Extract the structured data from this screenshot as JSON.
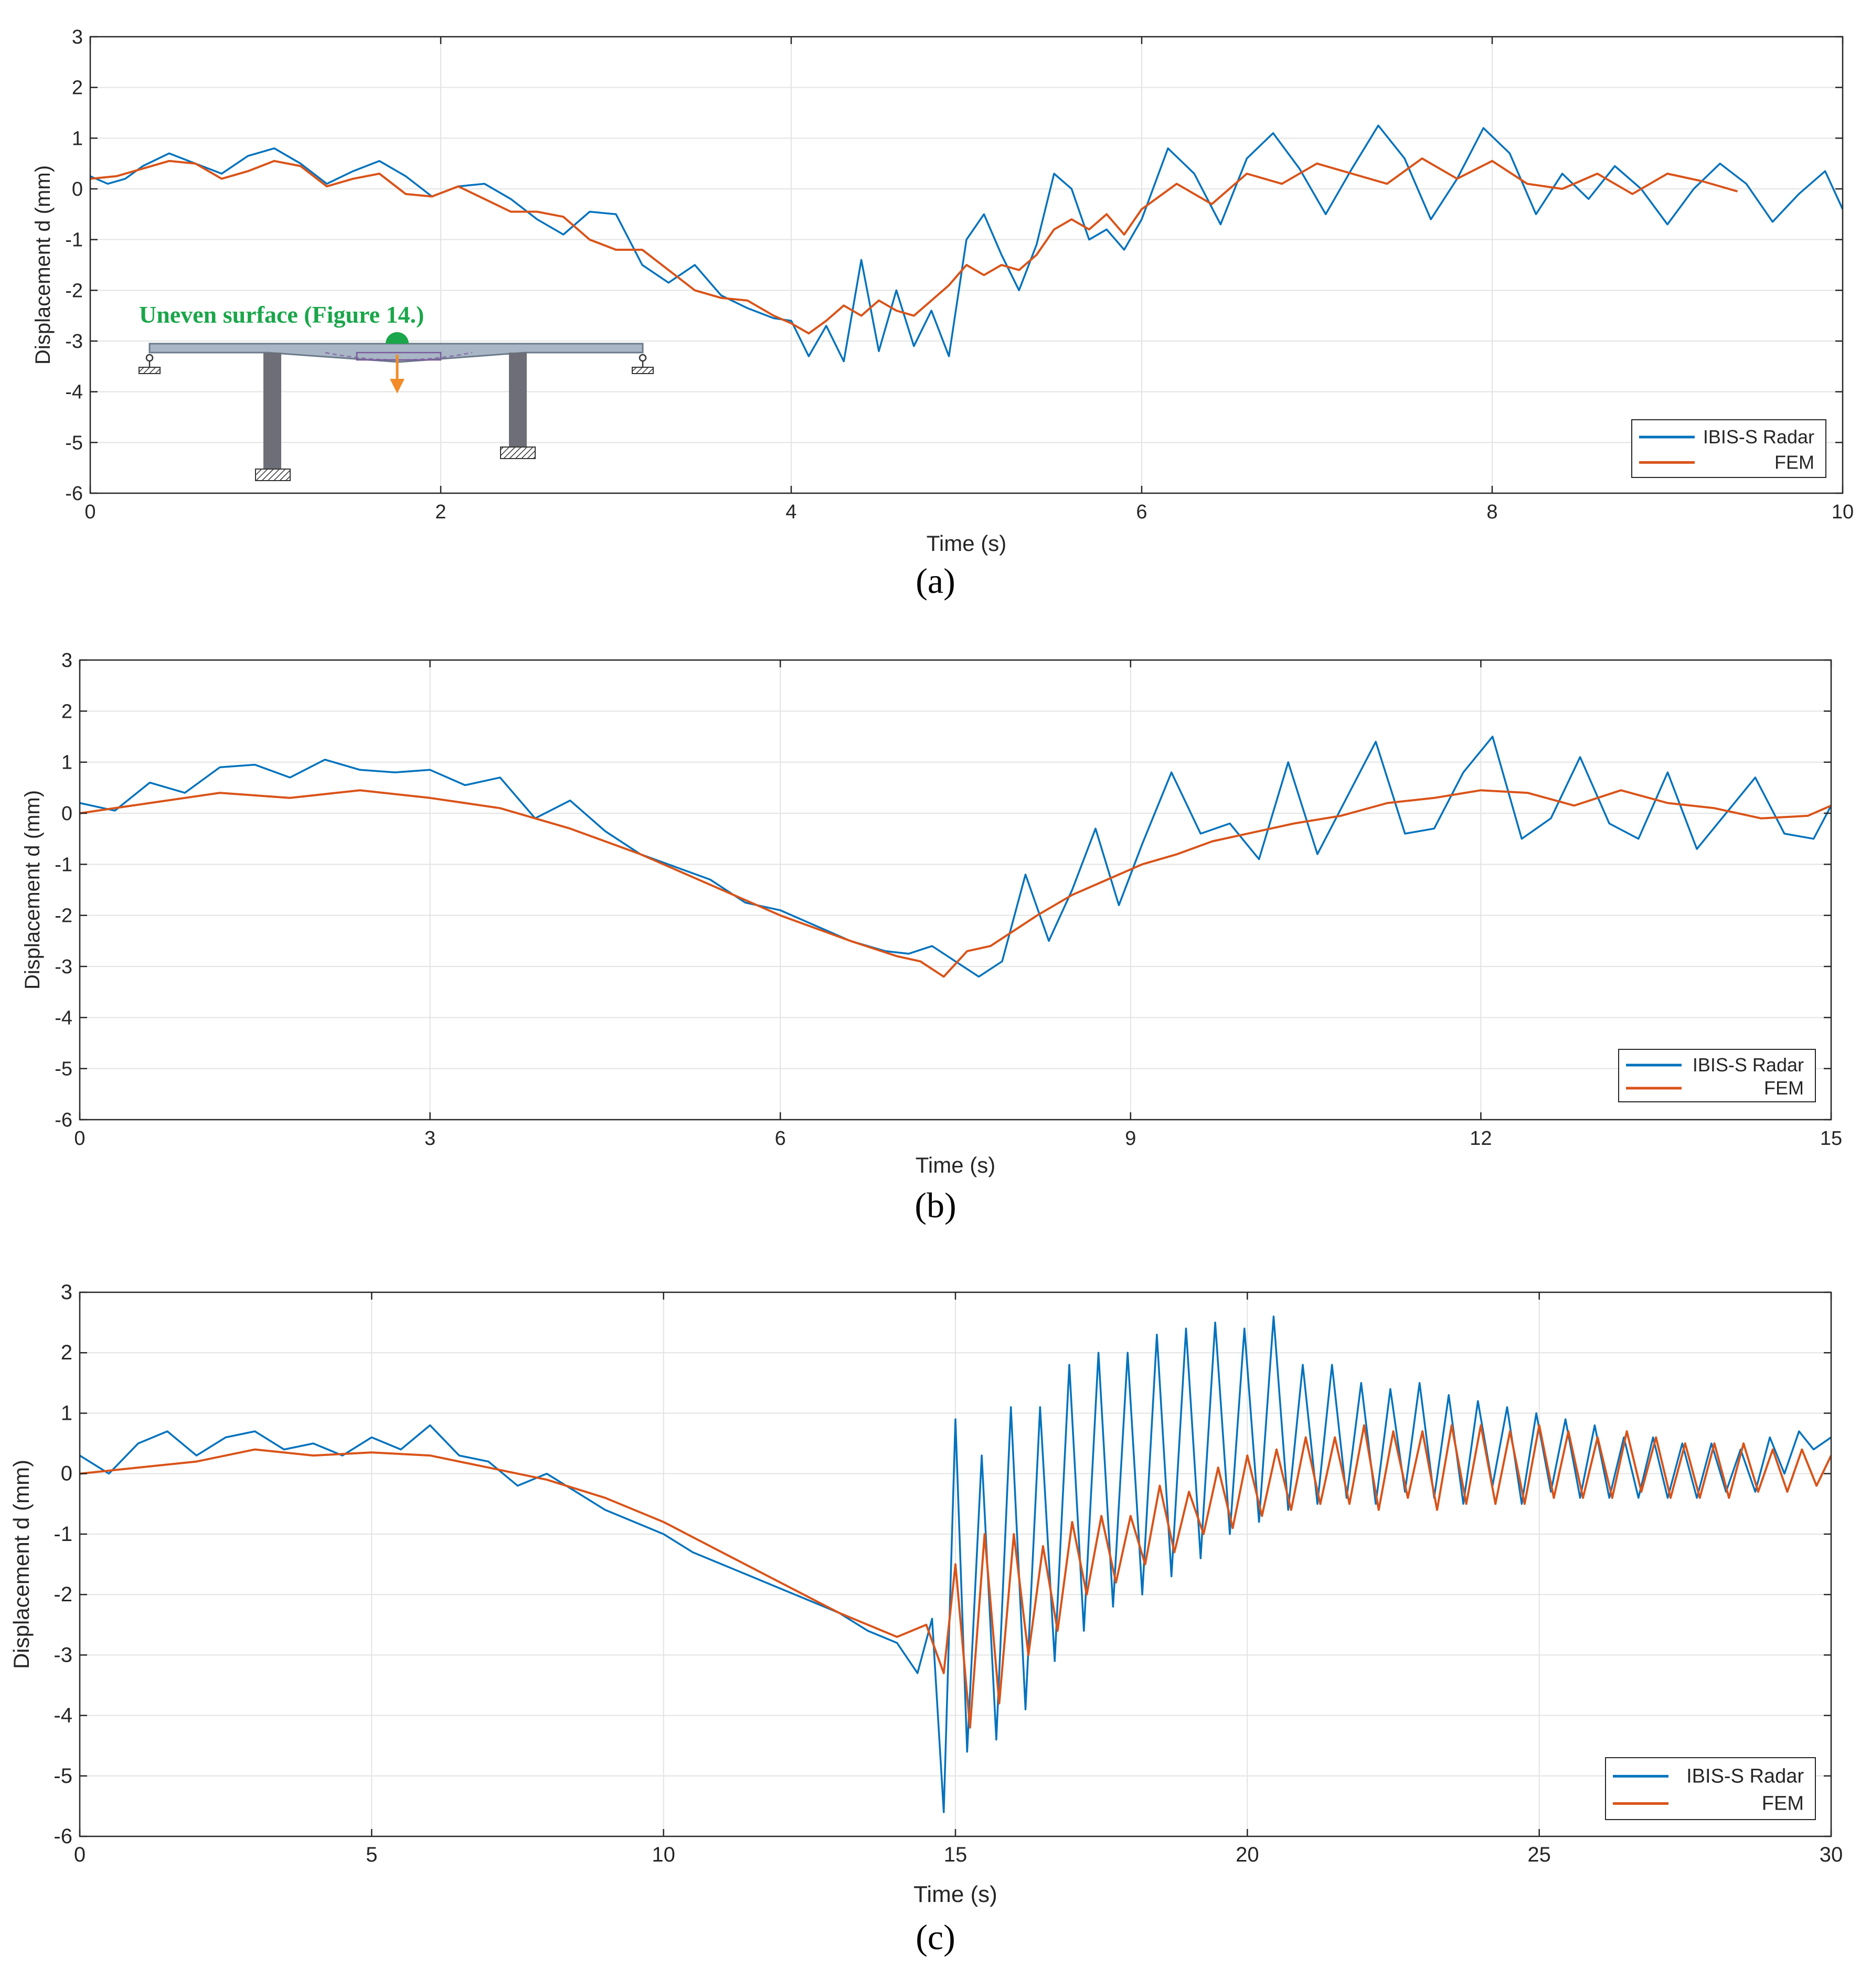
{
  "figure": {
    "colors": {
      "radar": "#0072BD",
      "fem": "#D95319",
      "grid": "#e3e3e3",
      "axis": "#262626",
      "inset_title": "#1aa64a",
      "inset_arrow": "#f28c28"
    }
  },
  "chart_data": [
    {
      "type": "line",
      "panel_label": "(a)",
      "xlabel": "Time (s)",
      "ylabel": "Displacement d (mm)",
      "xlim": [
        0,
        10
      ],
      "ylim": [
        -6,
        3
      ],
      "xticks": [
        0,
        2,
        4,
        6,
        8,
        10
      ],
      "yticks": [
        -6,
        -5,
        -4,
        -3,
        -2,
        -1,
        0,
        1,
        2,
        3
      ],
      "grid": true,
      "legend_position": "bottom-right",
      "inset": {
        "title": "Uneven surface (Figure 14.)",
        "description_icon": "bridge-diagram-icon"
      },
      "series": [
        {
          "name": "IBIS-S Radar",
          "color": "#0072BD",
          "x": [
            0,
            0.1,
            0.2,
            0.3,
            0.45,
            0.6,
            0.75,
            0.9,
            1.05,
            1.2,
            1.35,
            1.5,
            1.65,
            1.8,
            1.95,
            2.1,
            2.25,
            2.4,
            2.55,
            2.7,
            2.85,
            3.0,
            3.15,
            3.3,
            3.45,
            3.6,
            3.75,
            3.9,
            4.0,
            4.1,
            4.2,
            4.3,
            4.4,
            4.5,
            4.6,
            4.7,
            4.8,
            4.9,
            5.0,
            5.1,
            5.2,
            5.3,
            5.4,
            5.5,
            5.6,
            5.7,
            5.8,
            5.9,
            6.0,
            6.15,
            6.3,
            6.45,
            6.6,
            6.75,
            6.9,
            7.05,
            7.2,
            7.35,
            7.5,
            7.65,
            7.8,
            7.95,
            8.1,
            8.25,
            8.4,
            8.55,
            8.7,
            8.85,
            9.0,
            9.15,
            9.3,
            9.45,
            9.6,
            9.75,
            9.9,
            10.0
          ],
          "y": [
            0.25,
            0.1,
            0.2,
            0.45,
            0.7,
            0.5,
            0.3,
            0.65,
            0.8,
            0.5,
            0.1,
            0.35,
            0.55,
            0.25,
            -0.15,
            0.05,
            0.1,
            -0.2,
            -0.6,
            -0.9,
            -0.45,
            -0.5,
            -1.5,
            -1.85,
            -1.5,
            -2.1,
            -2.35,
            -2.55,
            -2.6,
            -3.3,
            -2.7,
            -3.4,
            -1.4,
            -3.2,
            -2.0,
            -3.1,
            -2.4,
            -3.3,
            -1.0,
            -0.5,
            -1.3,
            -2.0,
            -1.1,
            0.3,
            0.0,
            -1.0,
            -0.8,
            -1.2,
            -0.6,
            0.8,
            0.3,
            -0.7,
            0.6,
            1.1,
            0.4,
            -0.5,
            0.4,
            1.25,
            0.6,
            -0.6,
            0.2,
            1.2,
            0.7,
            -0.5,
            0.3,
            -0.2,
            0.45,
            0.0,
            -0.7,
            0.0,
            0.5,
            0.1,
            -0.65,
            -0.1,
            0.35,
            -0.4
          ]
        },
        {
          "name": "FEM",
          "color": "#D95319",
          "x": [
            0,
            0.15,
            0.3,
            0.45,
            0.6,
            0.75,
            0.9,
            1.05,
            1.2,
            1.35,
            1.5,
            1.65,
            1.8,
            1.95,
            2.1,
            2.25,
            2.4,
            2.55,
            2.7,
            2.85,
            3.0,
            3.15,
            3.3,
            3.45,
            3.6,
            3.75,
            3.9,
            4.0,
            4.1,
            4.2,
            4.3,
            4.4,
            4.5,
            4.6,
            4.7,
            4.8,
            4.9,
            5.0,
            5.1,
            5.2,
            5.3,
            5.4,
            5.5,
            5.6,
            5.7,
            5.8,
            5.9,
            6.0,
            6.2,
            6.4,
            6.6,
            6.8,
            7.0,
            7.2,
            7.4,
            7.6,
            7.8,
            8.0,
            8.2,
            8.4,
            8.6,
            8.8,
            9.0,
            9.2,
            9.4
          ],
          "y": [
            0.2,
            0.25,
            0.4,
            0.55,
            0.5,
            0.2,
            0.35,
            0.55,
            0.45,
            0.05,
            0.2,
            0.3,
            -0.1,
            -0.15,
            0.05,
            -0.2,
            -0.45,
            -0.45,
            -0.55,
            -1.0,
            -1.2,
            -1.2,
            -1.6,
            -2.0,
            -2.15,
            -2.2,
            -2.5,
            -2.65,
            -2.85,
            -2.6,
            -2.3,
            -2.5,
            -2.2,
            -2.4,
            -2.5,
            -2.2,
            -1.9,
            -1.5,
            -1.7,
            -1.5,
            -1.6,
            -1.3,
            -0.8,
            -0.6,
            -0.8,
            -0.5,
            -0.9,
            -0.4,
            0.1,
            -0.3,
            0.3,
            0.1,
            0.5,
            0.3,
            0.1,
            0.6,
            0.2,
            0.55,
            0.1,
            0.0,
            0.3,
            -0.1,
            0.3,
            0.15,
            -0.05
          ]
        }
      ]
    },
    {
      "type": "line",
      "panel_label": "(b)",
      "xlabel": "Time (s)",
      "ylabel": "Displacement d (mm)",
      "xlim": [
        0,
        15
      ],
      "ylim": [
        -6,
        3
      ],
      "xticks": [
        0,
        3,
        6,
        9,
        12,
        15
      ],
      "yticks": [
        -6,
        -5,
        -4,
        -3,
        -2,
        -1,
        0,
        1,
        2,
        3
      ],
      "grid": true,
      "legend_position": "bottom-right",
      "series": [
        {
          "name": "IBIS-S Radar",
          "color": "#0072BD",
          "x": [
            0,
            0.3,
            0.6,
            0.9,
            1.2,
            1.5,
            1.8,
            2.1,
            2.4,
            2.7,
            3.0,
            3.3,
            3.6,
            3.9,
            4.2,
            4.5,
            4.8,
            5.1,
            5.4,
            5.7,
            6.0,
            6.3,
            6.6,
            6.9,
            7.1,
            7.3,
            7.5,
            7.7,
            7.9,
            8.1,
            8.3,
            8.5,
            8.7,
            8.9,
            9.1,
            9.35,
            9.6,
            9.85,
            10.1,
            10.35,
            10.6,
            10.85,
            11.1,
            11.35,
            11.6,
            11.85,
            12.1,
            12.35,
            12.6,
            12.85,
            13.1,
            13.35,
            13.6,
            13.85,
            14.1,
            14.35,
            14.6,
            14.85,
            15.0
          ],
          "y": [
            0.2,
            0.05,
            0.6,
            0.4,
            0.9,
            0.95,
            0.7,
            1.05,
            0.85,
            0.8,
            0.85,
            0.55,
            0.7,
            -0.1,
            0.25,
            -0.35,
            -0.8,
            -1.05,
            -1.3,
            -1.75,
            -1.9,
            -2.2,
            -2.5,
            -2.7,
            -2.75,
            -2.6,
            -2.9,
            -3.2,
            -2.9,
            -1.2,
            -2.5,
            -1.5,
            -0.3,
            -1.8,
            -0.6,
            0.8,
            -0.4,
            -0.2,
            -0.9,
            1.0,
            -0.8,
            0.3,
            1.4,
            -0.4,
            -0.3,
            0.8,
            1.5,
            -0.5,
            -0.1,
            1.1,
            -0.2,
            -0.5,
            0.8,
            -0.7,
            0.0,
            0.7,
            -0.4,
            -0.5,
            0.15
          ]
        },
        {
          "name": "FEM",
          "color": "#D95319",
          "x": [
            0,
            0.6,
            1.2,
            1.8,
            2.4,
            3.0,
            3.6,
            4.2,
            4.8,
            5.4,
            6.0,
            6.6,
            7.0,
            7.2,
            7.4,
            7.6,
            7.8,
            8.0,
            8.2,
            8.5,
            8.8,
            9.1,
            9.4,
            9.7,
            10.0,
            10.4,
            10.8,
            11.2,
            11.6,
            12.0,
            12.4,
            12.8,
            13.2,
            13.6,
            14.0,
            14.4,
            14.8,
            15.0
          ],
          "y": [
            0.0,
            0.2,
            0.4,
            0.3,
            0.45,
            0.3,
            0.1,
            -0.3,
            -0.8,
            -1.4,
            -2.0,
            -2.5,
            -2.8,
            -2.9,
            -3.2,
            -2.7,
            -2.6,
            -2.3,
            -2.0,
            -1.6,
            -1.3,
            -1.0,
            -0.8,
            -0.55,
            -0.4,
            -0.2,
            -0.05,
            0.2,
            0.3,
            0.45,
            0.4,
            0.15,
            0.45,
            0.2,
            0.1,
            -0.1,
            -0.05,
            0.15
          ]
        }
      ]
    },
    {
      "type": "line",
      "panel_label": "(c)",
      "xlabel": "Time (s)",
      "ylabel": "Displacement d (mm)",
      "xlim": [
        0,
        30
      ],
      "ylim": [
        -6,
        3
      ],
      "xticks": [
        0,
        5,
        10,
        15,
        20,
        25,
        30
      ],
      "yticks": [
        -6,
        -5,
        -4,
        -3,
        -2,
        -1,
        0,
        1,
        2,
        3
      ],
      "grid": true,
      "legend_position": "bottom-right",
      "series": [
        {
          "name": "IBIS-S Radar",
          "color": "#0072BD",
          "x": [
            0,
            0.5,
            1.0,
            1.5,
            2.0,
            2.5,
            3.0,
            3.5,
            4.0,
            4.5,
            5.0,
            5.5,
            6.0,
            6.5,
            7.0,
            7.5,
            8.0,
            8.5,
            9.0,
            9.5,
            10.0,
            10.5,
            11.0,
            11.5,
            12.0,
            12.5,
            13.0,
            13.5,
            14.0,
            14.35,
            14.6,
            14.8,
            15.0,
            15.2,
            15.45,
            15.7,
            15.95,
            16.2,
            16.45,
            16.7,
            16.95,
            17.2,
            17.45,
            17.7,
            17.95,
            18.2,
            18.45,
            18.7,
            18.95,
            19.2,
            19.45,
            19.7,
            19.95,
            20.2,
            20.45,
            20.7,
            20.95,
            21.2,
            21.45,
            21.7,
            21.95,
            22.2,
            22.45,
            22.7,
            22.95,
            23.2,
            23.45,
            23.7,
            23.95,
            24.2,
            24.45,
            24.7,
            24.95,
            25.2,
            25.45,
            25.7,
            25.95,
            26.2,
            26.45,
            26.7,
            26.95,
            27.2,
            27.45,
            27.7,
            27.95,
            28.2,
            28.45,
            28.7,
            28.95,
            29.2,
            29.45,
            29.7,
            30.0
          ],
          "y": [
            0.3,
            0.0,
            0.5,
            0.7,
            0.3,
            0.6,
            0.7,
            0.4,
            0.5,
            0.3,
            0.6,
            0.4,
            0.8,
            0.3,
            0.2,
            -0.2,
            0.0,
            -0.3,
            -0.6,
            -0.8,
            -1.0,
            -1.3,
            -1.5,
            -1.7,
            -1.9,
            -2.1,
            -2.3,
            -2.6,
            -2.8,
            -3.3,
            -2.4,
            -5.6,
            0.9,
            -4.6,
            0.3,
            -4.4,
            1.1,
            -3.9,
            1.1,
            -3.1,
            1.8,
            -2.6,
            2.0,
            -2.2,
            2.0,
            -2.0,
            2.3,
            -1.7,
            2.4,
            -1.4,
            2.5,
            -1.0,
            2.4,
            -0.8,
            2.6,
            -0.6,
            1.8,
            -0.5,
            1.8,
            -0.4,
            1.5,
            -0.5,
            1.4,
            -0.3,
            1.5,
            -0.4,
            1.3,
            -0.5,
            1.2,
            -0.2,
            1.1,
            -0.5,
            1.0,
            -0.3,
            0.9,
            -0.4,
            0.8,
            -0.4,
            0.6,
            -0.4,
            0.6,
            -0.4,
            0.5,
            -0.4,
            0.5,
            -0.3,
            0.4,
            -0.3,
            0.6,
            0.0,
            0.7,
            0.4,
            0.6
          ]
        },
        {
          "name": "FEM",
          "color": "#D95319",
          "x": [
            0,
            1.0,
            2.0,
            3.0,
            4.0,
            5.0,
            6.0,
            7.0,
            8.0,
            9.0,
            10.0,
            11.0,
            12.0,
            13.0,
            14.0,
            14.5,
            14.8,
            15.0,
            15.25,
            15.5,
            15.75,
            16.0,
            16.25,
            16.5,
            16.75,
            17.0,
            17.25,
            17.5,
            17.75,
            18.0,
            18.25,
            18.5,
            18.75,
            19.0,
            19.25,
            19.5,
            19.75,
            20.0,
            20.25,
            20.5,
            20.75,
            21.0,
            21.25,
            21.5,
            21.75,
            22.0,
            22.25,
            22.5,
            22.75,
            23.0,
            23.25,
            23.5,
            23.75,
            24.0,
            24.25,
            24.5,
            24.75,
            25.0,
            25.25,
            25.5,
            25.75,
            26.0,
            26.25,
            26.5,
            26.75,
            27.0,
            27.25,
            27.5,
            27.75,
            28.0,
            28.25,
            28.5,
            28.75,
            29.0,
            29.25,
            29.5,
            29.75,
            30.0
          ],
          "y": [
            0.0,
            0.1,
            0.2,
            0.4,
            0.3,
            0.35,
            0.3,
            0.1,
            -0.1,
            -0.4,
            -0.8,
            -1.3,
            -1.8,
            -2.3,
            -2.7,
            -2.5,
            -3.3,
            -1.5,
            -4.2,
            -1.0,
            -3.8,
            -1.0,
            -3.0,
            -1.2,
            -2.6,
            -0.8,
            -2.0,
            -0.7,
            -1.8,
            -0.7,
            -1.5,
            -0.2,
            -1.3,
            -0.3,
            -1.0,
            0.1,
            -0.9,
            0.3,
            -0.7,
            0.4,
            -0.6,
            0.6,
            -0.5,
            0.6,
            -0.5,
            0.8,
            -0.6,
            0.7,
            -0.4,
            0.7,
            -0.6,
            0.8,
            -0.5,
            0.8,
            -0.5,
            0.7,
            -0.5,
            0.8,
            -0.4,
            0.7,
            -0.4,
            0.6,
            -0.4,
            0.7,
            -0.3,
            0.6,
            -0.4,
            0.5,
            -0.4,
            0.5,
            -0.4,
            0.5,
            -0.3,
            0.4,
            -0.3,
            0.4,
            -0.2,
            0.3
          ]
        }
      ]
    }
  ]
}
